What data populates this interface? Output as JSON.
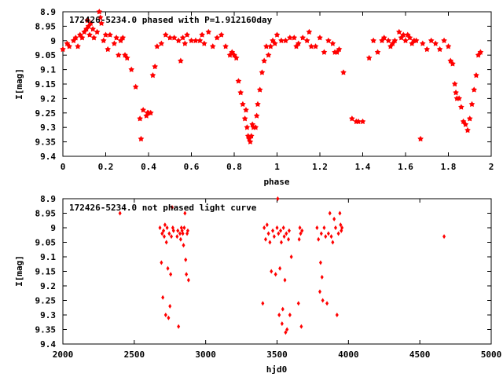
{
  "chart_data": [
    {
      "type": "scatter",
      "title": "172426-5234.0 phased with P=1.912160day",
      "xlabel": "phase",
      "ylabel": "I[mag]",
      "xlim": [
        0,
        2
      ],
      "ylim": [
        9.4,
        8.9
      ],
      "y_inverted": true,
      "x_ticks": [
        "0",
        "0.2",
        "0.4",
        "0.6",
        "0.8",
        "1",
        "1.2",
        "1.4",
        "1.6",
        "1.8",
        "2"
      ],
      "y_ticks": [
        "8.9",
        "8.95",
        "9",
        "9.05",
        "9.1",
        "9.15",
        "9.2",
        "9.25",
        "9.3",
        "9.35",
        "9.4"
      ],
      "marker_color": "#ff0000",
      "grid": false,
      "series": [
        {
          "points": [
            [
              0.0,
              9.03
            ],
            [
              0.02,
              9.01
            ],
            [
              0.03,
              9.02
            ],
            [
              0.05,
              9.0
            ],
            [
              0.06,
              8.99
            ],
            [
              0.07,
              9.02
            ],
            [
              0.08,
              8.98
            ],
            [
              0.09,
              8.99
            ],
            [
              0.1,
              8.97
            ],
            [
              0.11,
              8.96
            ],
            [
              0.115,
              8.93
            ],
            [
              0.12,
              8.95
            ],
            [
              0.125,
              8.98
            ],
            [
              0.13,
              8.94
            ],
            [
              0.14,
              8.96
            ],
            [
              0.145,
              8.99
            ],
            [
              0.16,
              8.97
            ],
            [
              0.17,
              8.9
            ],
            [
              0.175,
              8.92
            ],
            [
              0.18,
              8.94
            ],
            [
              0.19,
              9.0
            ],
            [
              0.2,
              8.98
            ],
            [
              0.21,
              9.03
            ],
            [
              0.22,
              8.98
            ],
            [
              0.24,
              9.01
            ],
            [
              0.25,
              8.99
            ],
            [
              0.26,
              9.05
            ],
            [
              0.27,
              9.0
            ],
            [
              0.28,
              8.99
            ],
            [
              0.29,
              9.05
            ],
            [
              0.3,
              9.06
            ],
            [
              0.32,
              9.1
            ],
            [
              0.34,
              9.16
            ],
            [
              0.36,
              9.27
            ],
            [
              0.365,
              9.34
            ],
            [
              0.375,
              9.24
            ],
            [
              0.39,
              9.26
            ],
            [
              0.395,
              9.25
            ],
            [
              0.4,
              9.25
            ],
            [
              0.41,
              9.25
            ],
            [
              0.42,
              9.12
            ],
            [
              0.43,
              9.09
            ],
            [
              0.44,
              9.02
            ],
            [
              0.46,
              9.01
            ],
            [
              0.48,
              8.98
            ],
            [
              0.5,
              8.99
            ],
            [
              0.52,
              8.99
            ],
            [
              0.54,
              9.0
            ],
            [
              0.55,
              9.07
            ],
            [
              0.56,
              8.99
            ],
            [
              0.57,
              9.01
            ],
            [
              0.58,
              8.98
            ],
            [
              0.6,
              9.0
            ],
            [
              0.62,
              9.0
            ],
            [
              0.64,
              9.0
            ],
            [
              0.65,
              8.98
            ],
            [
              0.66,
              9.01
            ],
            [
              0.68,
              8.97
            ],
            [
              0.7,
              9.02
            ],
            [
              0.72,
              8.99
            ],
            [
              0.74,
              8.98
            ],
            [
              0.76,
              9.02
            ],
            [
              0.78,
              9.05
            ],
            [
              0.79,
              9.04
            ],
            [
              0.8,
              9.05
            ],
            [
              0.81,
              9.06
            ],
            [
              0.82,
              9.14
            ],
            [
              0.83,
              9.18
            ],
            [
              0.84,
              9.22
            ],
            [
              0.85,
              9.27
            ],
            [
              0.855,
              9.24
            ],
            [
              0.86,
              9.3
            ],
            [
              0.865,
              9.33
            ],
            [
              0.87,
              9.34
            ],
            [
              0.875,
              9.35
            ],
            [
              0.88,
              9.33
            ],
            [
              0.885,
              9.29
            ],
            [
              0.89,
              9.3
            ],
            [
              0.9,
              9.3
            ],
            [
              0.905,
              9.26
            ],
            [
              0.91,
              9.22
            ],
            [
              0.92,
              9.17
            ],
            [
              0.93,
              9.11
            ],
            [
              0.94,
              9.07
            ],
            [
              0.95,
              9.02
            ],
            [
              0.96,
              9.05
            ],
            [
              0.97,
              9.02
            ],
            [
              0.98,
              9.0
            ],
            [
              0.99,
              9.01
            ],
            [
              1.0,
              8.98
            ],
            [
              1.02,
              9.0
            ],
            [
              1.04,
              9.0
            ],
            [
              1.06,
              8.99
            ],
            [
              1.08,
              8.99
            ],
            [
              1.09,
              9.02
            ],
            [
              1.1,
              9.01
            ],
            [
              1.12,
              8.99
            ],
            [
              1.14,
              9.0
            ],
            [
              1.15,
              8.97
            ],
            [
              1.16,
              9.02
            ],
            [
              1.18,
              9.02
            ],
            [
              1.2,
              8.99
            ],
            [
              1.22,
              9.04
            ],
            [
              1.24,
              9.0
            ],
            [
              1.26,
              9.01
            ],
            [
              1.27,
              9.04
            ],
            [
              1.28,
              9.04
            ],
            [
              1.29,
              9.03
            ],
            [
              1.31,
              9.11
            ],
            [
              1.35,
              9.27
            ],
            [
              1.37,
              9.28
            ],
            [
              1.38,
              9.28
            ],
            [
              1.4,
              9.28
            ],
            [
              1.43,
              9.06
            ],
            [
              1.45,
              9.0
            ],
            [
              1.47,
              9.04
            ],
            [
              1.49,
              9.0
            ],
            [
              1.5,
              8.99
            ],
            [
              1.52,
              9.0
            ],
            [
              1.53,
              9.02
            ],
            [
              1.54,
              9.01
            ],
            [
              1.55,
              9.0
            ],
            [
              1.57,
              8.97
            ],
            [
              1.58,
              8.99
            ],
            [
              1.59,
              8.98
            ],
            [
              1.6,
              9.0
            ],
            [
              1.61,
              8.98
            ],
            [
              1.62,
              8.99
            ],
            [
              1.63,
              9.01
            ],
            [
              1.64,
              9.0
            ],
            [
              1.65,
              9.0
            ],
            [
              1.67,
              9.34
            ],
            [
              1.68,
              9.01
            ],
            [
              1.7,
              9.03
            ],
            [
              1.72,
              9.0
            ],
            [
              1.74,
              9.01
            ],
            [
              1.76,
              9.03
            ],
            [
              1.78,
              9.0
            ],
            [
              1.8,
              9.02
            ],
            [
              1.81,
              9.07
            ],
            [
              1.82,
              9.08
            ],
            [
              1.83,
              9.15
            ],
            [
              1.835,
              9.18
            ],
            [
              1.84,
              9.2
            ],
            [
              1.85,
              9.2
            ],
            [
              1.86,
              9.23
            ],
            [
              1.87,
              9.28
            ],
            [
              1.88,
              9.29
            ],
            [
              1.89,
              9.31
            ],
            [
              1.9,
              9.27
            ],
            [
              1.91,
              9.22
            ],
            [
              1.92,
              9.17
            ],
            [
              1.93,
              9.12
            ],
            [
              1.94,
              9.05
            ],
            [
              1.95,
              9.04
            ]
          ]
        }
      ]
    },
    {
      "type": "scatter",
      "title": "172426-5234.0 not phased light curve",
      "xlabel": "hjd0",
      "ylabel": "I[mag]",
      "xlim": [
        2000,
        5000
      ],
      "ylim": [
        9.4,
        8.9
      ],
      "y_inverted": true,
      "x_ticks": [
        "2000",
        "2500",
        "3000",
        "3500",
        "4000",
        "4500",
        "5000"
      ],
      "y_ticks": [
        "8.9",
        "8.95",
        "9",
        "9.05",
        "9.1",
        "9.15",
        "9.2",
        "9.25",
        "9.3",
        "9.35",
        "9.4"
      ],
      "marker_color": "#ff0000",
      "grid": false,
      "series": [
        {
          "points": [
            [
              2400,
              8.95
            ],
            [
              2680,
              9.0
            ],
            [
              2690,
              9.12
            ],
            [
              2695,
              9.02
            ],
            [
              2700,
              9.24
            ],
            [
              2705,
              9.01
            ],
            [
              2710,
              9.03
            ],
            [
              2715,
              8.99
            ],
            [
              2720,
              9.3
            ],
            [
              2725,
              9.05
            ],
            [
              2730,
              9.0
            ],
            [
              2735,
              9.14
            ],
            [
              2740,
              9.31
            ],
            [
              2745,
              9.02
            ],
            [
              2750,
              9.27
            ],
            [
              2755,
              9.16
            ],
            [
              2760,
              9.03
            ],
            [
              2765,
              8.93
            ],
            [
              2770,
              9.0
            ],
            [
              2775,
              9.01
            ],
            [
              2800,
              9.03
            ],
            [
              2805,
              9.01
            ],
            [
              2810,
              9.34
            ],
            [
              2820,
              9.02
            ],
            [
              2825,
              9.04
            ],
            [
              2830,
              9.0
            ],
            [
              2835,
              9.01
            ],
            [
              2840,
              9.02
            ],
            [
              2845,
              9.06
            ],
            [
              2850,
              9.0
            ],
            [
              2855,
              8.95
            ],
            [
              2860,
              9.11
            ],
            [
              2865,
              9.16
            ],
            [
              2870,
              9.02
            ],
            [
              2875,
              9.01
            ],
            [
              2880,
              9.18
            ],
            [
              3400,
              9.26
            ],
            [
              3410,
              9.0
            ],
            [
              3420,
              9.04
            ],
            [
              3430,
              8.99
            ],
            [
              3440,
              9.02
            ],
            [
              3450,
              9.05
            ],
            [
              3460,
              9.15
            ],
            [
              3470,
              9.01
            ],
            [
              3480,
              9.03
            ],
            [
              3490,
              9.16
            ],
            [
              3500,
              9.0
            ],
            [
              3505,
              8.9
            ],
            [
              3510,
              9.02
            ],
            [
              3515,
              9.3
            ],
            [
              3520,
              9.14
            ],
            [
              3525,
              9.01
            ],
            [
              3530,
              9.05
            ],
            [
              3535,
              9.33
            ],
            [
              3540,
              9.28
            ],
            [
              3545,
              9.0
            ],
            [
              3550,
              9.03
            ],
            [
              3555,
              9.18
            ],
            [
              3560,
              9.36
            ],
            [
              3565,
              9.02
            ],
            [
              3570,
              9.35
            ],
            [
              3580,
              9.04
            ],
            [
              3585,
              9.01
            ],
            [
              3590,
              9.3
            ],
            [
              3600,
              9.1
            ],
            [
              3650,
              9.26
            ],
            [
              3655,
              9.04
            ],
            [
              3660,
              9.0
            ],
            [
              3665,
              9.02
            ],
            [
              3670,
              9.34
            ],
            [
              3675,
              9.01
            ],
            [
              3780,
              9.0
            ],
            [
              3790,
              9.04
            ],
            [
              3800,
              9.22
            ],
            [
              3805,
              9.12
            ],
            [
              3810,
              9.02
            ],
            [
              3815,
              9.17
            ],
            [
              3820,
              9.25
            ],
            [
              3830,
              9.0
            ],
            [
              3840,
              9.03
            ],
            [
              3850,
              9.26
            ],
            [
              3860,
              9.02
            ],
            [
              3870,
              8.95
            ],
            [
              3880,
              9.03
            ],
            [
              3890,
              9.05
            ],
            [
              3900,
              8.97
            ],
            [
              3910,
              9.0
            ],
            [
              3920,
              9.3
            ],
            [
              3930,
              9.02
            ],
            [
              3940,
              8.95
            ],
            [
              3945,
              8.99
            ],
            [
              3950,
              9.01
            ],
            [
              3955,
              9.0
            ],
            [
              4670,
              9.03
            ]
          ]
        }
      ]
    }
  ]
}
